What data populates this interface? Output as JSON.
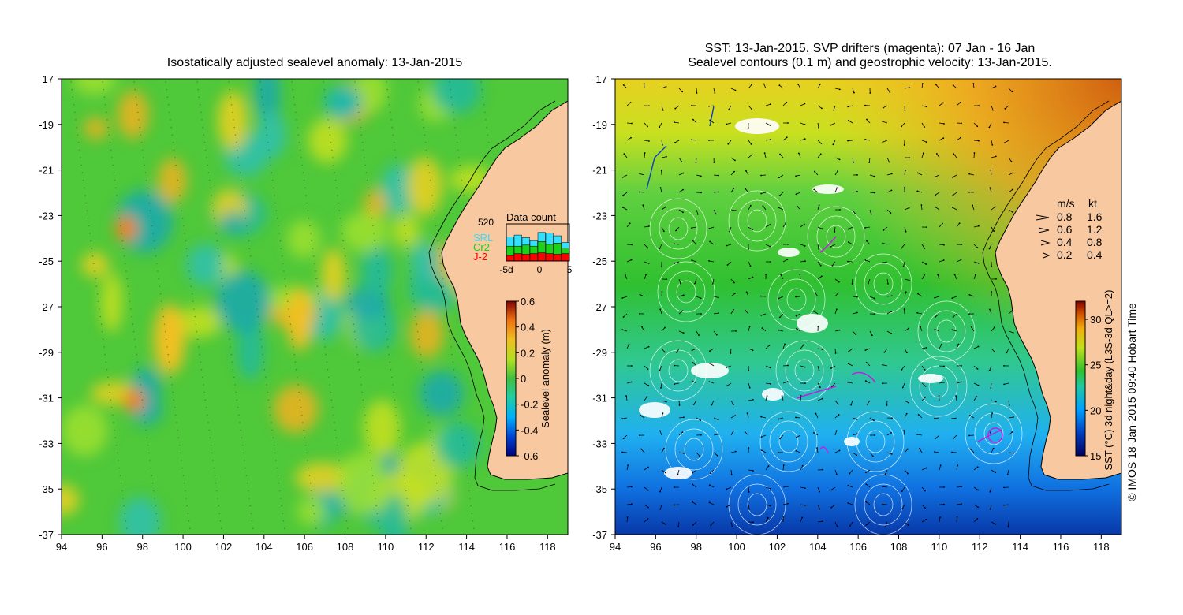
{
  "left_panel": {
    "title": "Isostatically adjusted sealevel anomaly: 13-Jan-2015",
    "x_ticks": [
      "94",
      "96",
      "98",
      "100",
      "102",
      "104",
      "106",
      "108",
      "110",
      "112",
      "114",
      "116",
      "118"
    ],
    "y_ticks": [
      "-17",
      "-19",
      "-21",
      "-23",
      "-25",
      "-27",
      "-29",
      "-31",
      "-33",
      "-35",
      "-37"
    ],
    "colorbar": {
      "label": "Sealevel anomaly (m)",
      "ticks": [
        "0.6",
        "0.4",
        "0.2",
        "0",
        "-0.2",
        "-0.4",
        "-0.6"
      ]
    },
    "data_count": {
      "title": "Data count",
      "max_label": "520",
      "legend": [
        {
          "name": "SRL",
          "color": "#33e0ff"
        },
        {
          "name": "Cr2",
          "color": "#19d219"
        },
        {
          "name": "J-2",
          "color": "#ff0000"
        }
      ],
      "x_ticks": [
        "-5d",
        "0",
        "5"
      ],
      "bars": [
        {
          "srl": 0.25,
          "cr2": 0.25,
          "j2": 0.15
        },
        {
          "srl": 0.3,
          "cr2": 0.2,
          "j2": 0.2
        },
        {
          "srl": 0.2,
          "cr2": 0.25,
          "j2": 0.18
        },
        {
          "srl": 0.15,
          "cr2": 0.2,
          "j2": 0.2
        },
        {
          "srl": 0.25,
          "cr2": 0.3,
          "j2": 0.22
        },
        {
          "srl": 0.3,
          "cr2": 0.25,
          "j2": 0.2
        },
        {
          "srl": 0.2,
          "cr2": 0.3,
          "j2": 0.18
        },
        {
          "srl": 0.15,
          "cr2": 0.15,
          "j2": 0.2
        }
      ]
    }
  },
  "right_panel": {
    "title_line1": "SST: 13-Jan-2015. SVP drifters (magenta): 07 Jan - 16 Jan",
    "title_line2": "Sealevel contours (0.1 m) and geostrophic velocity: 13-Jan-2015.",
    "x_ticks": [
      "94",
      "96",
      "98",
      "100",
      "102",
      "104",
      "106",
      "108",
      "110",
      "112",
      "114",
      "116",
      "118"
    ],
    "y_ticks": [
      "-17",
      "-19",
      "-21",
      "-23",
      "-25",
      "-27",
      "-29",
      "-31",
      "-33",
      "-35",
      "-37"
    ],
    "velocity_legend": {
      "header_ms": "m/s",
      "header_kt": "kt",
      "rows": [
        {
          "ms": "0.8",
          "kt": "1.6"
        },
        {
          "ms": "0.6",
          "kt": "1.2"
        },
        {
          "ms": "0.4",
          "kt": "0.8"
        },
        {
          "ms": "0.2",
          "kt": "0.4"
        }
      ]
    },
    "colorbar": {
      "label": "SST (°C) 3d night&day (L3S-3d QL>=2)",
      "ticks": [
        "30",
        "25",
        "20",
        "15"
      ]
    }
  },
  "credit": "© IMOS 18-Jan-2015 09:40 Hobart Time",
  "colors": {
    "land": "#f8c8a0",
    "ocean_green": "#4fc83a",
    "coast": "#000000"
  }
}
